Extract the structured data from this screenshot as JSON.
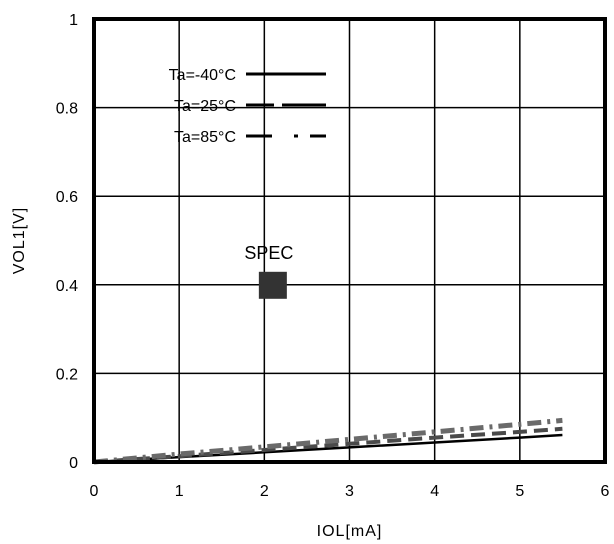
{
  "chart_data": {
    "type": "line",
    "xlabel": "IOL[mA]",
    "ylabel": "VOL1[V]",
    "xlim": [
      0,
      6
    ],
    "ylim": [
      0,
      1
    ],
    "x_ticks": [
      "0",
      "1",
      "2",
      "3",
      "4",
      "5",
      "6"
    ],
    "y_ticks": [
      "0",
      "0.2",
      "0.4",
      "0.6",
      "0.8",
      "1"
    ],
    "grid": true,
    "legend_position": "top-left",
    "series": [
      {
        "name": "Ta=-40°C",
        "style": "solid",
        "color": "#000000",
        "x": [
          0,
          1,
          2,
          3,
          4,
          5,
          5.5
        ],
        "y": [
          0,
          0.011,
          0.022,
          0.033,
          0.044,
          0.055,
          0.061
        ]
      },
      {
        "name": "Ta=25°C",
        "style": "dashed",
        "color": "#4a4a4a",
        "x": [
          0,
          1,
          2,
          3,
          4,
          5,
          5.5
        ],
        "y": [
          0,
          0.013,
          0.027,
          0.041,
          0.055,
          0.068,
          0.075
        ]
      },
      {
        "name": "Ta=85°C",
        "style": "dashdot",
        "color": "#6a6a6a",
        "x": [
          0,
          1,
          2,
          3,
          4,
          5,
          5.5
        ],
        "y": [
          0,
          0.018,
          0.034,
          0.051,
          0.068,
          0.085,
          0.094
        ]
      }
    ],
    "annotations": [
      {
        "label": "SPEC",
        "x": 2.1,
        "y": 0.4,
        "marker": "square",
        "color": "#333333"
      }
    ]
  }
}
